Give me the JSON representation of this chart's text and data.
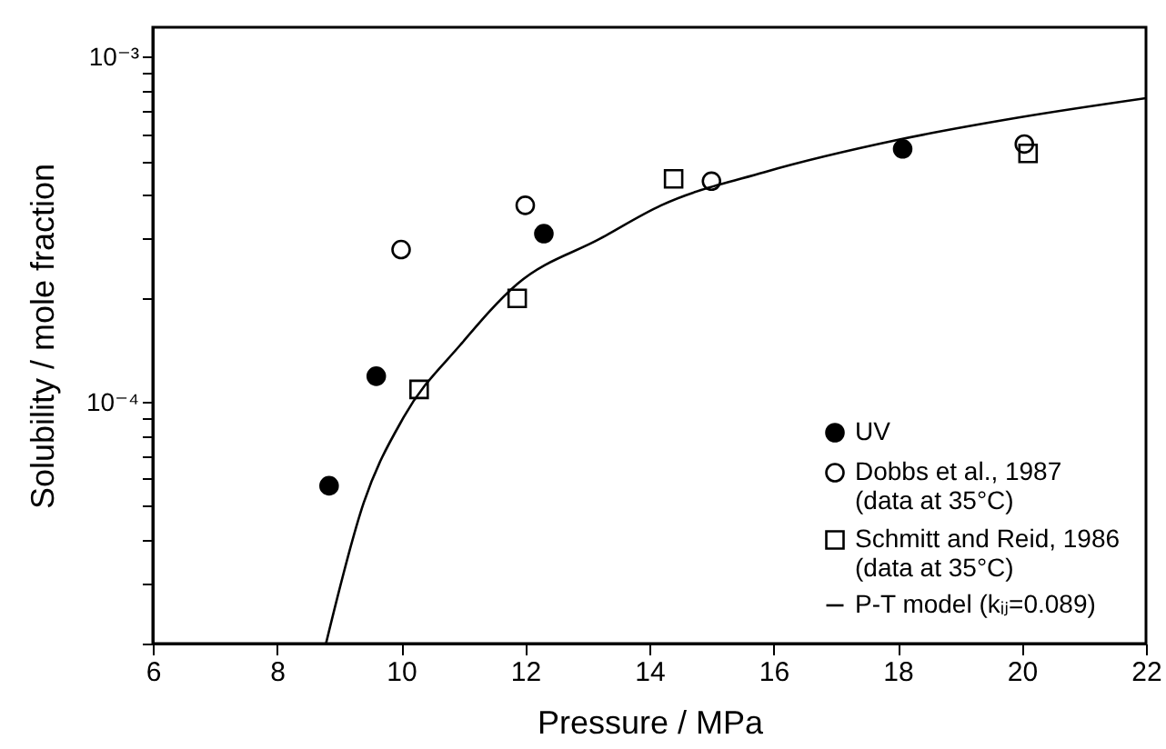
{
  "chart_data": {
    "type": "scatter",
    "xlabel": "Pressure / MPa",
    "ylabel": "Solubility / mole fraction",
    "log": "y",
    "legend": "bottom right",
    "grid": false,
    "xlim": [
      6,
      22
    ],
    "ylim": [
      2e-05,
      0.00122
    ],
    "xticks": [
      6,
      8,
      10,
      12,
      14,
      16,
      18,
      20,
      22
    ],
    "yticks": [
      {
        "value": 2e-05,
        "label": null
      },
      {
        "value": 3e-05,
        "label": null
      },
      {
        "value": 4e-05,
        "label": null
      },
      {
        "value": 5e-05,
        "label": null
      },
      {
        "value": 6e-05,
        "label": null
      },
      {
        "value": 7e-05,
        "label": null
      },
      {
        "value": 8e-05,
        "label": null
      },
      {
        "value": 9e-05,
        "label": null
      },
      {
        "value": 0.0001,
        "label": "10⁻⁴"
      },
      {
        "value": 0.0002,
        "label": null
      },
      {
        "value": 0.0003,
        "label": null
      },
      {
        "value": 0.0004,
        "label": null
      },
      {
        "value": 0.0005,
        "label": null
      },
      {
        "value": 0.0006,
        "label": null
      },
      {
        "value": 0.0007,
        "label": null
      },
      {
        "value": 0.0008,
        "label": null
      },
      {
        "value": 0.0009,
        "label": null
      },
      {
        "value": 0.001,
        "label": "10⁻³"
      }
    ],
    "series": [
      {
        "name": "UV",
        "marker": "circle",
        "color": "#000000",
        "x": [
          8.84,
          9.6,
          12.3,
          18.08
        ],
        "values": [
          5.73e-05,
          0.000119,
          0.000308,
          0.000542
        ]
      },
      {
        "name": "Dobbs et al., 1987\n(data at 35°C)",
        "marker": "circle",
        "color": "#000000",
        "x": [
          10.0,
          12.0,
          15.0,
          20.04
        ],
        "values": [
          0.000277,
          0.000372,
          0.000437,
          0.00056
        ]
      },
      {
        "name": "Schmitt and Reid, 1986\n(data at 35°C)",
        "marker": "square",
        "color": "#000000",
        "x": [
          10.29,
          11.87,
          14.39,
          20.1
        ],
        "values": [
          0.000109,
          0.0002,
          0.000444,
          0.000526
        ]
      },
      {
        "name": "P-T model (kᵢⱼ=0.089)",
        "type": "line",
        "marker": "none",
        "line_style": "solid",
        "color": "#000000",
        "x": [
          8.79,
          9.4,
          10.04,
          10.96,
          11.87,
          13.21,
          14.19,
          15.85,
          17.99,
          19.95,
          22
        ],
        "values": [
          2e-05,
          5.13e-05,
          9.04e-05,
          0.000147,
          0.00022,
          0.000298,
          0.000372,
          0.000464,
          0.000575,
          0.000668,
          0.00076
        ]
      }
    ]
  }
}
